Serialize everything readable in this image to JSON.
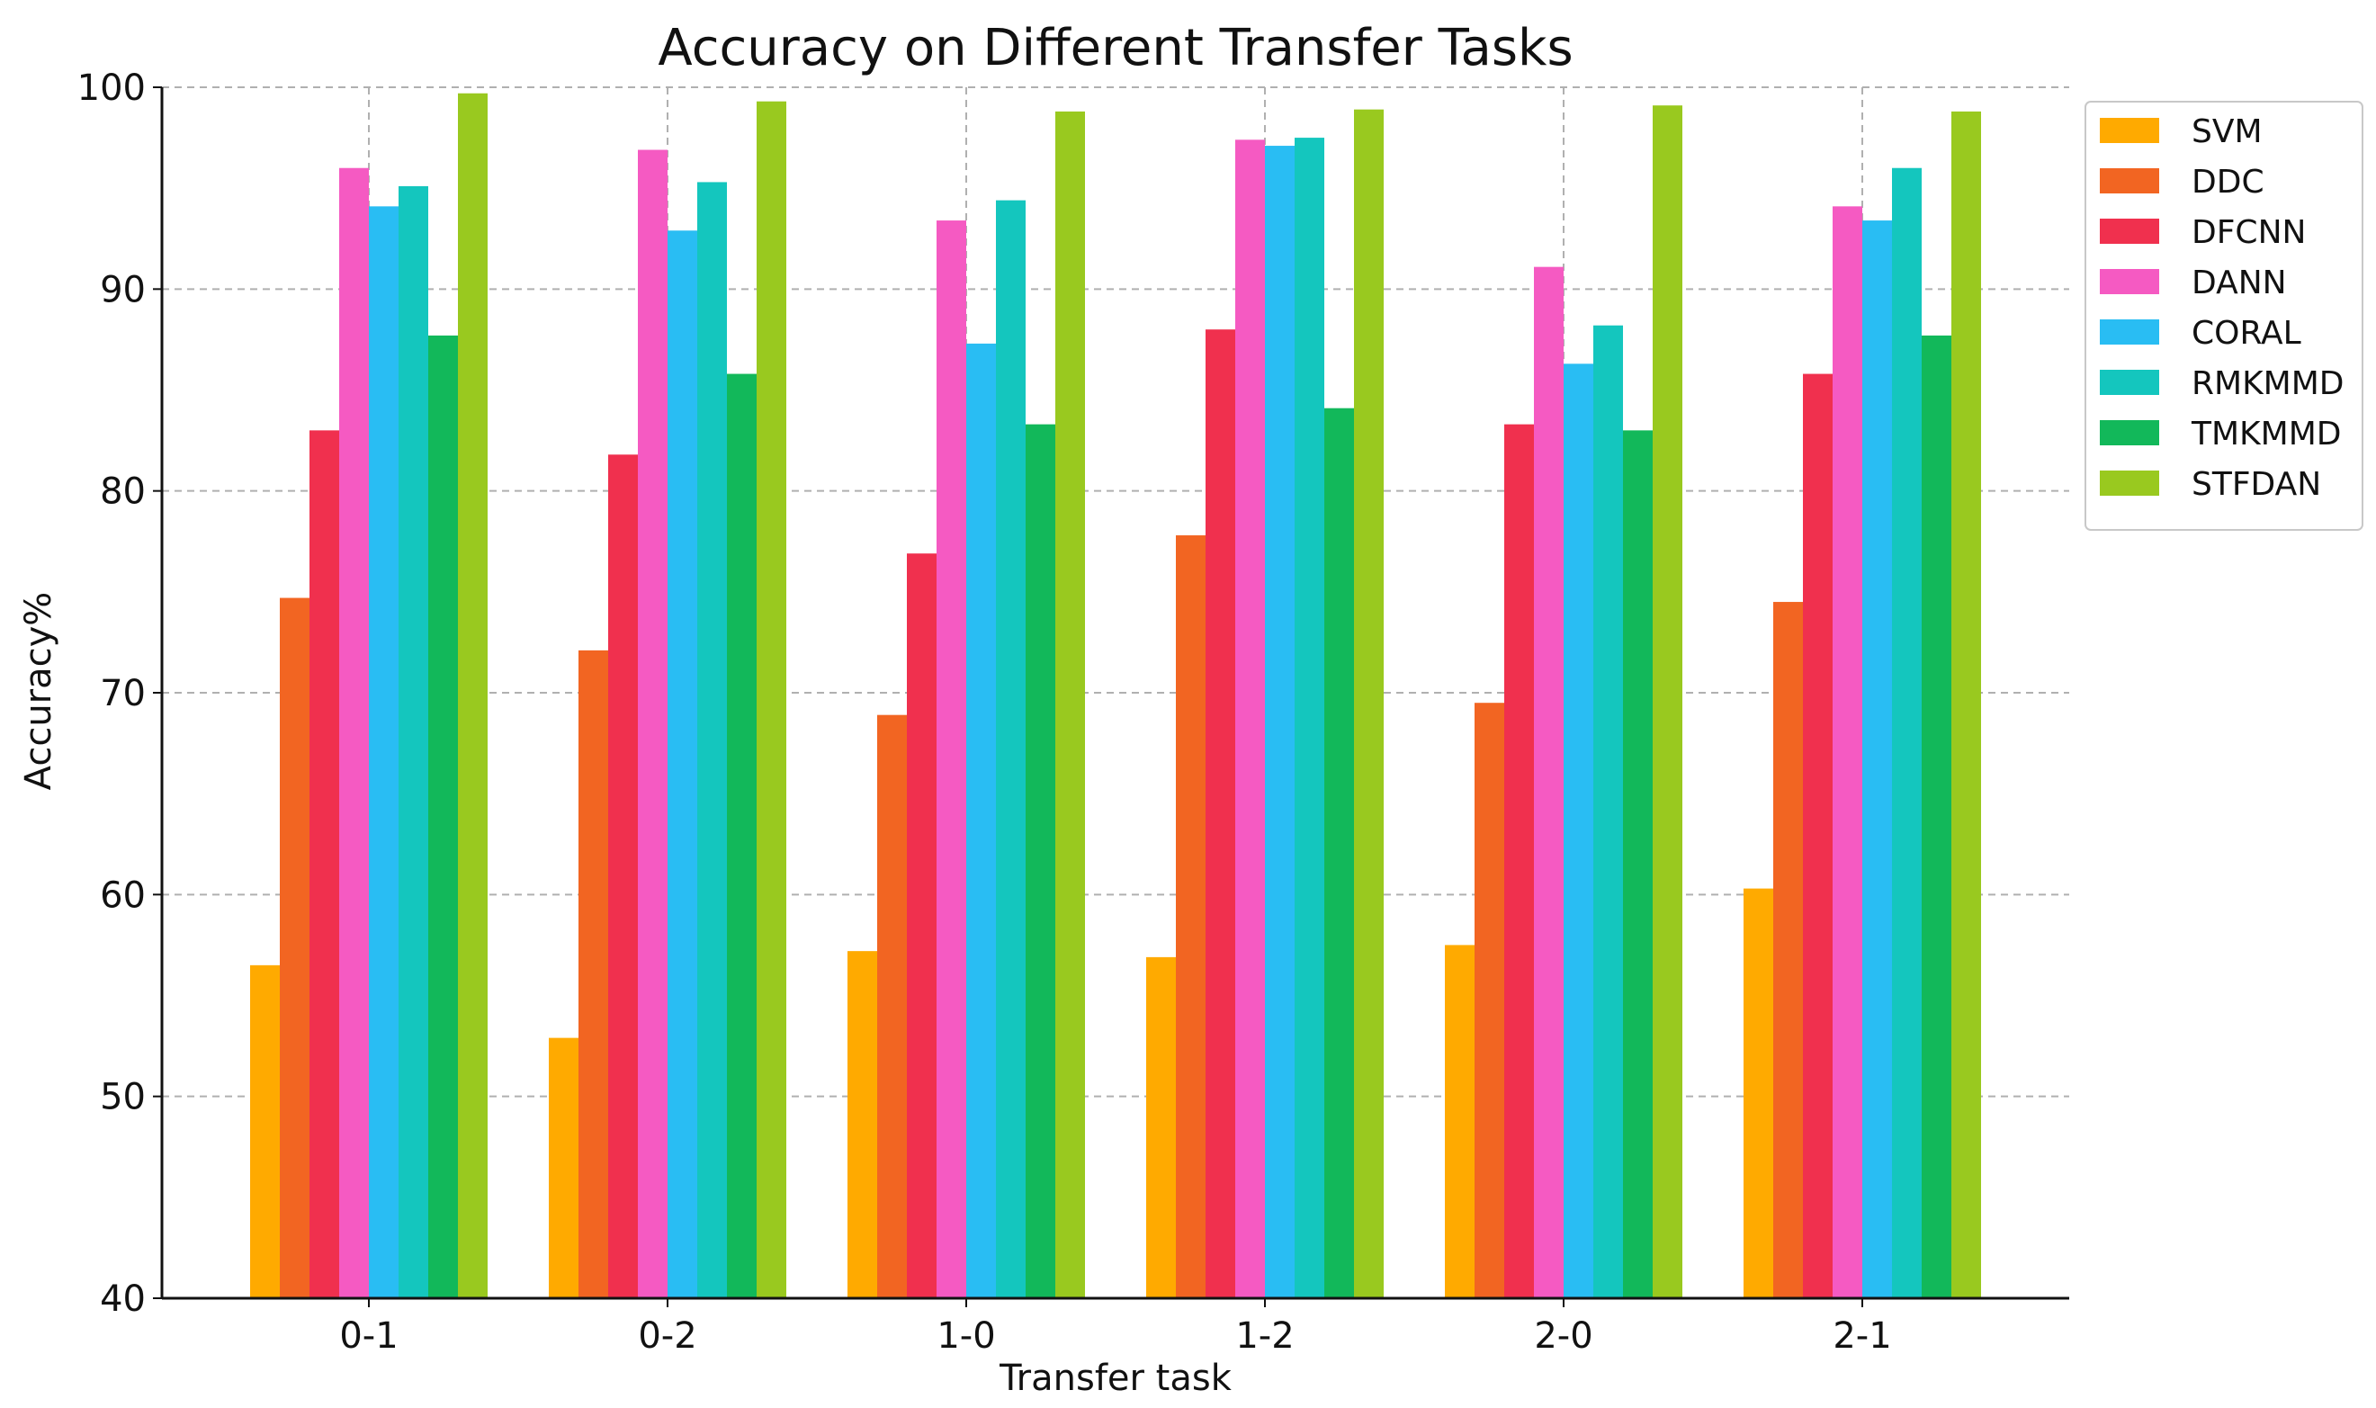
{
  "chart_data": {
    "type": "bar",
    "title": "Accuracy on Different Transfer Tasks",
    "xlabel": "Transfer task",
    "ylabel": "Accuracy%",
    "ylim": [
      40,
      100
    ],
    "yticks": [
      "40",
      "50",
      "60",
      "70",
      "80",
      "90",
      "100"
    ],
    "grid": true,
    "legend_position": "top-right",
    "categories": [
      "0-1",
      "0-2",
      "1-0",
      "1-2",
      "2-0",
      "2-1"
    ],
    "series": [
      {
        "name": "SVM",
        "color": "#FFAA00",
        "values": [
          56.5,
          52.9,
          57.2,
          56.9,
          57.5,
          60.3
        ]
      },
      {
        "name": "DDC",
        "color": "#F26522",
        "values": [
          74.7,
          72.1,
          68.9,
          77.8,
          69.5,
          74.5
        ]
      },
      {
        "name": "DFCNN",
        "color": "#F0304E",
        "values": [
          83.0,
          81.8,
          76.9,
          88.0,
          83.3,
          85.8
        ]
      },
      {
        "name": "DANN",
        "color": "#F55AC2",
        "values": [
          96.0,
          96.9,
          93.4,
          97.4,
          91.1,
          94.1
        ]
      },
      {
        "name": "CORAL",
        "color": "#29BDF3",
        "values": [
          94.1,
          92.9,
          87.3,
          97.1,
          86.3,
          93.4
        ]
      },
      {
        "name": "RMKMMD",
        "color": "#14C6BE",
        "values": [
          95.1,
          95.3,
          94.4,
          97.5,
          88.2,
          96.0
        ]
      },
      {
        "name": "TMKMMD",
        "color": "#12B85A",
        "values": [
          87.7,
          85.8,
          83.3,
          84.1,
          83.0,
          87.7
        ]
      },
      {
        "name": "STFDAN",
        "color": "#99C91F",
        "values": [
          99.7,
          99.3,
          98.8,
          98.9,
          99.1,
          98.8
        ]
      }
    ]
  }
}
